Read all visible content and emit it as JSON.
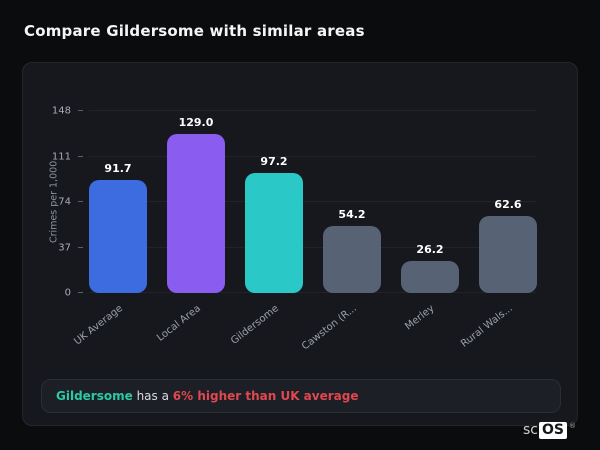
{
  "page": {
    "title": "Compare Gildersome with similar areas"
  },
  "chart_data": {
    "type": "bar",
    "categories": [
      "UK Average",
      "Local Area",
      "Gildersome",
      "Cawston (R...",
      "Merley",
      "Rural Wals..."
    ],
    "values": [
      91.7,
      129.0,
      97.2,
      54.2,
      26.2,
      62.6
    ],
    "value_labels": [
      "91.7",
      "129.0",
      "97.2",
      "54.2",
      "26.2",
      "62.6"
    ],
    "bar_colors": [
      "#3c6ce0",
      "#8a5cf0",
      "#2bc8c8",
      "#576275",
      "#576275",
      "#576275"
    ],
    "title": "",
    "xlabel": "",
    "ylabel": "Crimes per 1,000",
    "ylim": [
      0,
      148
    ],
    "yticks": [
      0,
      37,
      74,
      111,
      148
    ],
    "grid": true,
    "legend": false
  },
  "note": {
    "highlight": "Gildersome",
    "middle": " has a ",
    "alert": "6% higher than UK average",
    "highlight_color": "#2bc9a4",
    "alert_color": "#e0484f"
  },
  "logo": {
    "prefix": "sc",
    "suffix": "OS",
    "registered": "®"
  }
}
